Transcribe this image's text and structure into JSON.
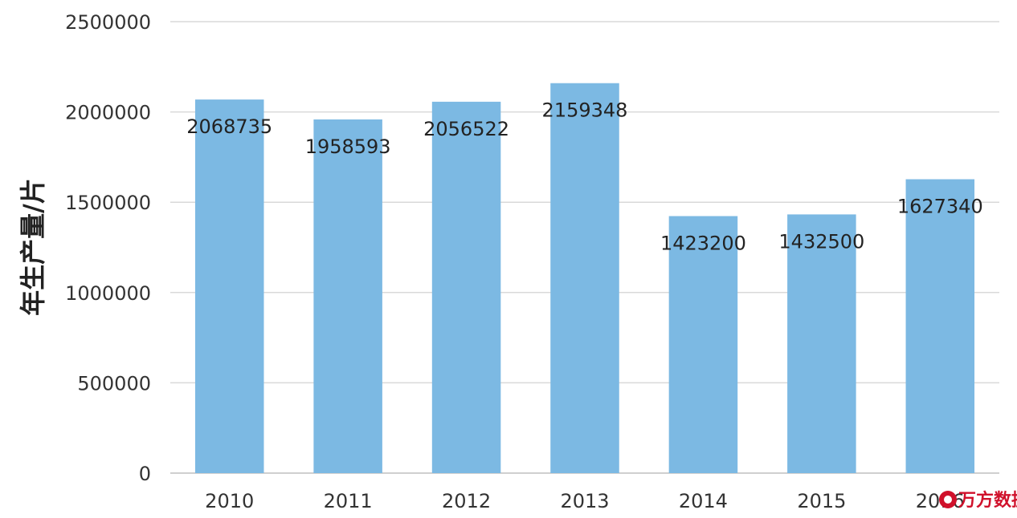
{
  "chart_data": {
    "type": "bar",
    "title": "",
    "xlabel": "",
    "ylabel": "年生产量/片",
    "categories": [
      "2010",
      "2011",
      "2012",
      "2013",
      "2014",
      "2015",
      "2016"
    ],
    "values": [
      2068735,
      1958593,
      2056522,
      2159348,
      1423200,
      1432500,
      1627340
    ],
    "data_labels": [
      "2068735",
      "1958593",
      "2056522",
      "2159348",
      "1423200",
      "1432500",
      "1627340"
    ],
    "ylim": [
      0,
      2500000
    ],
    "yticks": [
      0,
      500000,
      1000000,
      1500000,
      2000000,
      2500000
    ],
    "ytick_labels": [
      "0",
      "500000",
      "1000000",
      "1500000",
      "2000000",
      "2500000"
    ],
    "grid": true,
    "legend": "none",
    "bar_color": "#7cb9e3"
  },
  "watermark": {
    "text": "万方数据",
    "color": "#d0112b"
  }
}
